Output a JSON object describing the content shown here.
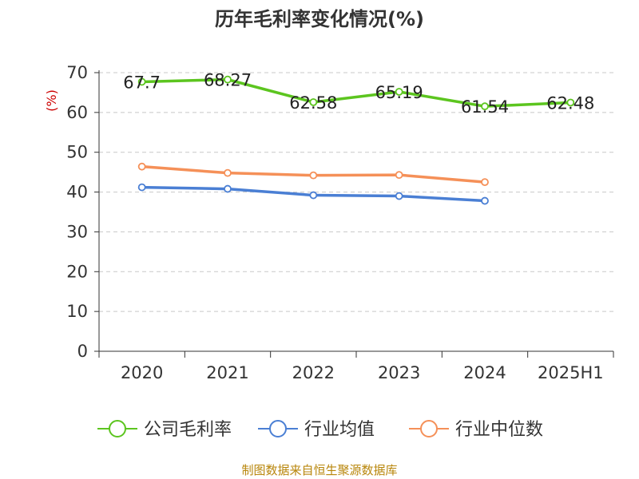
{
  "chart_data": {
    "type": "line",
    "title": "历年毛利率变化情况(%)",
    "ylabel": "(%)",
    "xlabel": "",
    "categories": [
      "2020",
      "2021",
      "2022",
      "2023",
      "2024",
      "2025H1"
    ],
    "ylim": [
      0,
      70
    ],
    "yticks": [
      0,
      10,
      20,
      30,
      40,
      50,
      60,
      70
    ],
    "grid": true,
    "legend_position": "bottom",
    "series": [
      {
        "name": "公司毛利率",
        "color": "#5cc51f",
        "values": [
          67.7,
          68.27,
          62.58,
          65.19,
          61.54,
          62.48
        ],
        "labels": [
          "67.7",
          "68.27",
          "62.58",
          "65.19",
          "61.54",
          "62.48"
        ]
      },
      {
        "name": "行业均值",
        "color": "#4a7fd4",
        "values": [
          41.2,
          40.8,
          39.2,
          39.0,
          37.8,
          null
        ]
      },
      {
        "name": "行业中位数",
        "color": "#f59058",
        "values": [
          46.4,
          44.8,
          44.2,
          44.3,
          42.5,
          null
        ]
      }
    ],
    "source": "制图数据来自恒生聚源数据库"
  }
}
